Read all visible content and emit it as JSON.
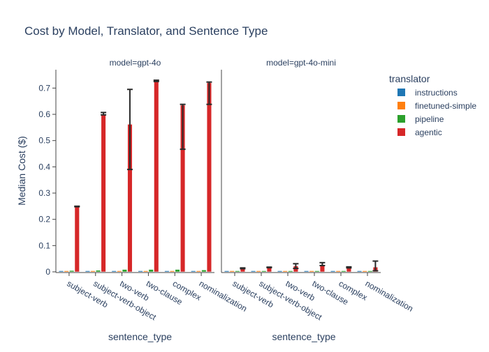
{
  "chart_data": {
    "type": "bar",
    "title": "Cost by Model, Translator, and Sentence Type",
    "ylabel": "Median Cost ($)",
    "xlabel": "sentence_type",
    "ylim": [
      0,
      0.77
    ],
    "y_ticks": [
      0,
      0.1,
      0.2,
      0.3,
      0.4,
      0.5,
      0.6,
      0.7
    ],
    "y_tick_labels": [
      "0",
      "0.1",
      "0.2",
      "0.3",
      "0.4",
      "0.5",
      "0.6",
      "0.7"
    ],
    "categories": [
      "subject-verb",
      "subject-verb-object",
      "two-verb",
      "two-clause",
      "complex",
      "nominalization"
    ],
    "legend": {
      "title": "translator",
      "placement": "right"
    },
    "series_styles": [
      {
        "name": "instructions",
        "color": "#1f77b4"
      },
      {
        "name": "finetuned-simple",
        "color": "#ff7f0e"
      },
      {
        "name": "pipeline",
        "color": "#2ca02c"
      },
      {
        "name": "agentic",
        "color": "#d62728"
      }
    ],
    "panels": [
      {
        "label": "model=gpt-4o",
        "series": [
          {
            "name": "instructions",
            "values": [
              0.002,
              0.002,
              0.002,
              0.002,
              0.002,
              0.002
            ]
          },
          {
            "name": "finetuned-simple",
            "values": [
              0.001,
              0.001,
              0.001,
              0.001,
              0.001,
              0.001
            ]
          },
          {
            "name": "pipeline",
            "values": [
              0.005,
              0.006,
              0.009,
              0.009,
              0.009,
              0.007
            ]
          },
          {
            "name": "agentic",
            "values": [
              0.25,
              0.6,
              0.562,
              0.728,
              0.635,
              0.72
            ]
          }
        ],
        "agentic_error": [
          [
            0.248,
            0.25
          ],
          [
            0.598,
            0.607
          ],
          [
            0.39,
            0.695
          ],
          [
            0.725,
            0.73
          ],
          [
            0.467,
            0.638
          ],
          [
            0.638,
            0.723
          ]
        ]
      },
      {
        "label": "model=gpt-4o-mini",
        "series": [
          {
            "name": "instructions",
            "values": [
              0.0003,
              0.0003,
              0.0003,
              0.0003,
              0.0003,
              0.0003
            ]
          },
          {
            "name": "finetuned-simple",
            "values": [
              0.0002,
              0.0002,
              0.0002,
              0.0002,
              0.0002,
              0.0002
            ]
          },
          {
            "name": "pipeline",
            "values": [
              0.0005,
              0.0005,
              0.0008,
              0.0008,
              0.0008,
              0.0006
            ]
          },
          {
            "name": "agentic",
            "values": [
              0.013,
              0.017,
              0.022,
              0.026,
              0.016,
              0.018
            ]
          }
        ],
        "agentic_error": [
          [
            0.012,
            0.015
          ],
          [
            0.016,
            0.018
          ],
          [
            0.013,
            0.031
          ],
          [
            0.024,
            0.035
          ],
          [
            0.015,
            0.019
          ],
          [
            0.004,
            0.041
          ]
        ]
      }
    ]
  }
}
